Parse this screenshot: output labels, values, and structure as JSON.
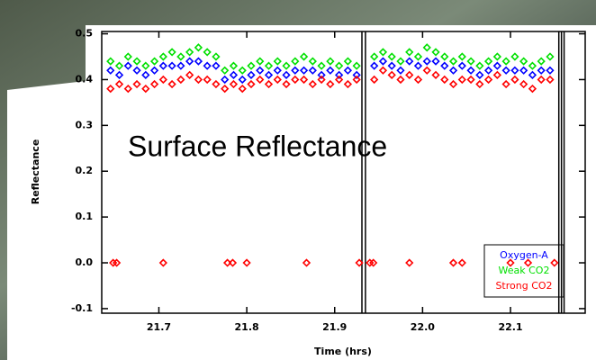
{
  "chart_data": {
    "type": "scatter",
    "annotation": "Surface Reflectance",
    "ylabel": "Reflectance",
    "xlabel": "Time (hrs)",
    "xlim": [
      21.635,
      22.185
    ],
    "ylim": [
      -0.11,
      0.505
    ],
    "xticks": [
      21.7,
      21.8,
      21.9,
      {
        "value": 22.0,
        "label": "22.0"
      },
      22.1
    ],
    "yticks": [
      0.5,
      0.4,
      0.3,
      0.2,
      0.1,
      {
        "value": 0,
        "label": "0.0"
      },
      -0.1
    ],
    "vlines": [
      21.931,
      21.935,
      22.155,
      22.158,
      22.161
    ],
    "legend": "lower right",
    "series": [
      {
        "name": "Oxygen-A",
        "color": "#0000ff",
        "x": [
          21.645,
          21.655,
          21.665,
          21.675,
          21.685,
          21.695,
          21.705,
          21.715,
          21.725,
          21.735,
          21.745,
          21.755,
          21.765,
          21.775,
          21.785,
          21.795,
          21.805,
          21.815,
          21.825,
          21.835,
          21.845,
          21.855,
          21.865,
          21.875,
          21.885,
          21.895,
          21.905,
          21.915,
          21.925,
          21.945,
          21.955,
          21.965,
          21.975,
          21.985,
          21.995,
          22.005,
          22.015,
          22.025,
          22.035,
          22.045,
          22.055,
          22.065,
          22.075,
          22.085,
          22.095,
          22.105,
          22.115,
          22.125,
          22.135,
          22.145
        ],
        "values": [
          0.42,
          0.41,
          0.43,
          0.42,
          0.41,
          0.42,
          0.43,
          0.43,
          0.43,
          0.44,
          0.44,
          0.43,
          0.43,
          0.4,
          0.41,
          0.4,
          0.41,
          0.42,
          0.41,
          0.42,
          0.41,
          0.42,
          0.42,
          0.42,
          0.41,
          0.42,
          0.41,
          0.42,
          0.41,
          0.43,
          0.44,
          0.43,
          0.42,
          0.44,
          0.43,
          0.44,
          0.44,
          0.43,
          0.42,
          0.43,
          0.42,
          0.41,
          0.42,
          0.43,
          0.42,
          0.42,
          0.42,
          0.41,
          0.42,
          0.42
        ]
      },
      {
        "name": "Weak CO2",
        "color": "#00e000",
        "x": [
          21.645,
          21.655,
          21.665,
          21.675,
          21.685,
          21.695,
          21.705,
          21.715,
          21.725,
          21.735,
          21.745,
          21.755,
          21.765,
          21.775,
          21.785,
          21.795,
          21.805,
          21.815,
          21.825,
          21.835,
          21.845,
          21.855,
          21.865,
          21.875,
          21.885,
          21.895,
          21.905,
          21.915,
          21.925,
          21.945,
          21.955,
          21.965,
          21.975,
          21.985,
          21.995,
          22.005,
          22.015,
          22.025,
          22.035,
          22.045,
          22.055,
          22.065,
          22.075,
          22.085,
          22.095,
          22.105,
          22.115,
          22.125,
          22.135,
          22.145
        ],
        "values": [
          0.44,
          0.43,
          0.45,
          0.44,
          0.43,
          0.44,
          0.45,
          0.46,
          0.45,
          0.46,
          0.47,
          0.46,
          0.45,
          0.42,
          0.43,
          0.42,
          0.43,
          0.44,
          0.43,
          0.44,
          0.43,
          0.44,
          0.45,
          0.44,
          0.43,
          0.44,
          0.43,
          0.44,
          0.43,
          0.45,
          0.46,
          0.45,
          0.44,
          0.46,
          0.45,
          0.47,
          0.46,
          0.45,
          0.44,
          0.45,
          0.44,
          0.43,
          0.44,
          0.45,
          0.44,
          0.45,
          0.44,
          0.43,
          0.44,
          0.45
        ]
      },
      {
        "name": "Strong CO2",
        "color": "#ff0000",
        "x": [
          21.645,
          21.655,
          21.665,
          21.675,
          21.685,
          21.695,
          21.705,
          21.715,
          21.725,
          21.735,
          21.745,
          21.755,
          21.765,
          21.775,
          21.785,
          21.795,
          21.805,
          21.815,
          21.825,
          21.835,
          21.845,
          21.855,
          21.865,
          21.875,
          21.885,
          21.895,
          21.905,
          21.915,
          21.925,
          21.945,
          21.955,
          21.965,
          21.975,
          21.985,
          21.995,
          22.005,
          22.015,
          22.025,
          22.035,
          22.045,
          22.055,
          22.065,
          22.075,
          22.085,
          22.095,
          22.105,
          22.115,
          22.125,
          22.135,
          22.145,
          21.648,
          21.652,
          21.705,
          21.778,
          21.784,
          21.8,
          21.868,
          21.928,
          21.94,
          21.944,
          21.985,
          22.035,
          22.045,
          22.1,
          22.12,
          22.15
        ],
        "values": [
          0.38,
          0.39,
          0.38,
          0.39,
          0.38,
          0.39,
          0.4,
          0.39,
          0.4,
          0.41,
          0.4,
          0.4,
          0.39,
          0.38,
          0.39,
          0.38,
          0.39,
          0.4,
          0.39,
          0.4,
          0.39,
          0.4,
          0.4,
          0.39,
          0.4,
          0.39,
          0.4,
          0.39,
          0.4,
          0.4,
          0.42,
          0.41,
          0.4,
          0.41,
          0.4,
          0.42,
          0.41,
          0.4,
          0.39,
          0.4,
          0.4,
          0.39,
          0.4,
          0.41,
          0.39,
          0.4,
          0.39,
          0.38,
          0.4,
          0.4,
          0,
          0,
          0,
          0,
          0,
          0,
          0,
          0,
          0,
          0,
          0,
          0,
          0,
          0,
          0,
          0
        ]
      }
    ]
  }
}
